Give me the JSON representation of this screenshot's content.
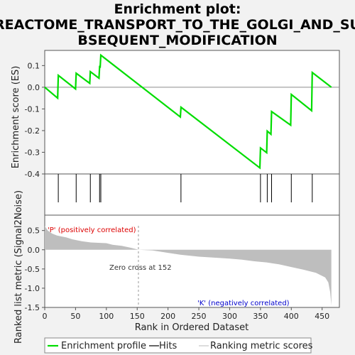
{
  "chart_data": {
    "type": "line",
    "title_lines": [
      "Enrichment plot:",
      "REACTOME_TRANSPORT_TO_THE_GOLGI_AND_SU",
      "BSEQUENT_MODIFICATION"
    ],
    "top_ylabel": "Enrichment score (ES)",
    "bottom_ylabel": "Ranked list metric (Signal2Noise)",
    "xlabel": "Rank in Ordered Dataset",
    "xlim": [
      0,
      478
    ],
    "top_ylim": [
      -0.4,
      0.17
    ],
    "bottom_ylim": [
      -1.5,
      0.9
    ],
    "x_ticks": [
      0,
      50,
      100,
      150,
      200,
      250,
      300,
      350,
      400,
      450
    ],
    "top_y_ticks": [
      0.1,
      0.0,
      -0.1,
      -0.2,
      -0.3,
      -0.4
    ],
    "top_y_tick_labels": [
      "0.1",
      "0.0",
      "-0.1",
      "-0.2",
      "-0.3",
      "-0.4"
    ],
    "bottom_y_ticks": [
      0.5,
      0.0,
      -0.5,
      -1.0,
      -1.5
    ],
    "bottom_y_tick_labels": [
      "0.5",
      "0.0",
      "-0.5",
      "-1.0",
      "-1.5"
    ],
    "n_genes": 465,
    "zero_cross": 152,
    "hits": [
      22,
      51,
      74,
      89,
      91,
      221,
      350,
      361,
      368,
      400,
      434
    ],
    "es_profile": [
      {
        "x": 0,
        "y": 0.0
      },
      {
        "x": 21,
        "y": -0.05
      },
      {
        "x": 22,
        "y": 0.055
      },
      {
        "x": 50,
        "y": -0.008
      },
      {
        "x": 51,
        "y": 0.065
      },
      {
        "x": 73,
        "y": 0.018
      },
      {
        "x": 74,
        "y": 0.072
      },
      {
        "x": 88,
        "y": 0.042
      },
      {
        "x": 89,
        "y": 0.095
      },
      {
        "x": 90,
        "y": 0.094
      },
      {
        "x": 91,
        "y": 0.148
      },
      {
        "x": 220,
        "y": -0.137
      },
      {
        "x": 221,
        "y": -0.092
      },
      {
        "x": 349,
        "y": -0.372
      },
      {
        "x": 350,
        "y": -0.28
      },
      {
        "x": 360,
        "y": -0.302
      },
      {
        "x": 361,
        "y": -0.202
      },
      {
        "x": 367,
        "y": -0.217
      },
      {
        "x": 368,
        "y": -0.112
      },
      {
        "x": 399,
        "y": -0.175
      },
      {
        "x": 400,
        "y": -0.033
      },
      {
        "x": 433,
        "y": -0.108
      },
      {
        "x": 434,
        "y": 0.068
      },
      {
        "x": 465,
        "y": 0.0
      }
    ],
    "ranked_metric": [
      {
        "x": 0,
        "y": 0.62
      },
      {
        "x": 5,
        "y": 0.5
      },
      {
        "x": 12,
        "y": 0.42
      },
      {
        "x": 20,
        "y": 0.37
      },
      {
        "x": 35,
        "y": 0.32
      },
      {
        "x": 45,
        "y": 0.27
      },
      {
        "x": 60,
        "y": 0.22
      },
      {
        "x": 75,
        "y": 0.19
      },
      {
        "x": 100,
        "y": 0.17
      },
      {
        "x": 110,
        "y": 0.13
      },
      {
        "x": 125,
        "y": 0.1
      },
      {
        "x": 140,
        "y": 0.05
      },
      {
        "x": 152,
        "y": 0.0
      },
      {
        "x": 175,
        "y": -0.02
      },
      {
        "x": 200,
        "y": -0.08
      },
      {
        "x": 220,
        "y": -0.13
      },
      {
        "x": 250,
        "y": -0.18
      },
      {
        "x": 280,
        "y": -0.21
      },
      {
        "x": 300,
        "y": -0.23
      },
      {
        "x": 320,
        "y": -0.26
      },
      {
        "x": 340,
        "y": -0.3
      },
      {
        "x": 360,
        "y": -0.33
      },
      {
        "x": 380,
        "y": -0.38
      },
      {
        "x": 400,
        "y": -0.45
      },
      {
        "x": 420,
        "y": -0.52
      },
      {
        "x": 440,
        "y": -0.6
      },
      {
        "x": 455,
        "y": -0.72
      },
      {
        "x": 460,
        "y": -0.85
      },
      {
        "x": 463,
        "y": -1.1
      },
      {
        "x": 465,
        "y": -1.45
      }
    ],
    "heat_segments": [
      {
        "x0": 0,
        "x1": 30,
        "color": "#e8323c"
      },
      {
        "x0": 30,
        "x1": 65,
        "color": "#ff5050"
      },
      {
        "x0": 65,
        "x1": 105,
        "color": "#ff6d78"
      },
      {
        "x0": 105,
        "x1": 140,
        "color": "#ff9aa4"
      },
      {
        "x0": 140,
        "x1": 175,
        "color": "#ffc8dc"
      },
      {
        "x0": 175,
        "x1": 222,
        "color": "#dedaf8"
      },
      {
        "x0": 222,
        "x1": 290,
        "color": "#cec8f4"
      },
      {
        "x0": 290,
        "x1": 335,
        "color": "#9a90ec"
      },
      {
        "x0": 335,
        "x1": 385,
        "color": "#7466e4"
      },
      {
        "x0": 385,
        "x1": 432,
        "color": "#6048dc"
      },
      {
        "x0": 432,
        "x1": 465,
        "color": "#3a10cc"
      }
    ],
    "annotations": {
      "positive": "'P' (positively correlated)",
      "negative": "'K' (negatively correlated)",
      "zero_cross": "Zero cross at 152"
    },
    "legend": {
      "placement": "bottom",
      "items": [
        "Enrichment profile",
        "Hits",
        "Ranking metric scores"
      ]
    },
    "colors": {
      "profile": "#00dd00",
      "hits": "#000000",
      "metric_fill": "#bebebe",
      "positive_text": "#dd0000",
      "negative_text": "#0000cc",
      "zero_cross_text": "#333333"
    }
  }
}
